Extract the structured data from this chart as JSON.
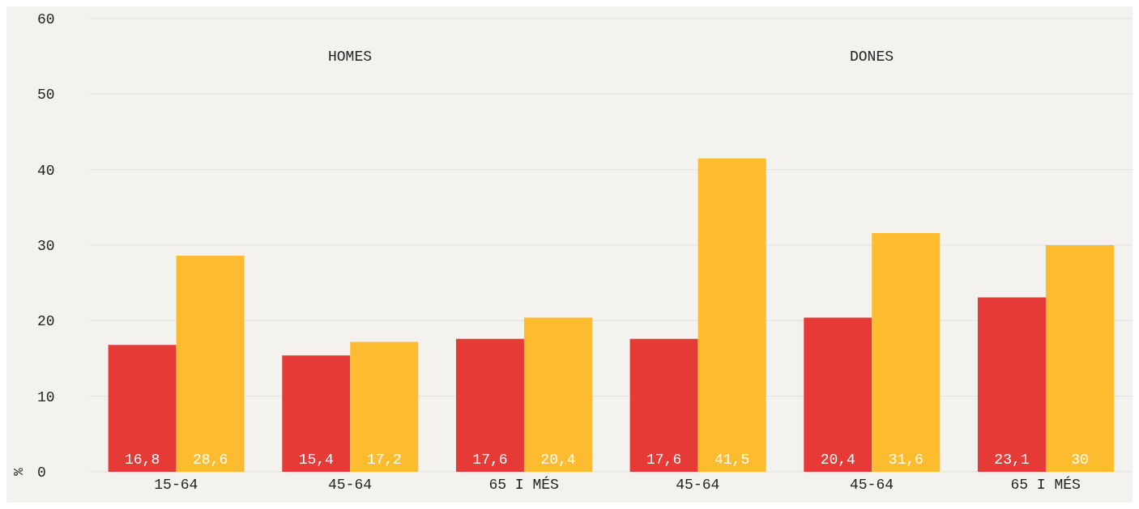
{
  "chart_data": {
    "type": "bar",
    "ylabel": "%",
    "categories": [
      "15-64",
      "45-64",
      "65 I MÉS",
      "45-64",
      "45-64",
      "65 I MÉS"
    ],
    "series": [
      {
        "color": "#e63a37",
        "values": [
          16.8,
          15.4,
          17.6,
          17.6,
          20.4,
          23.1
        ],
        "value_labels": [
          "16,8",
          "15,4",
          "17,6",
          "17,6",
          "20,4",
          "23,1"
        ]
      },
      {
        "color": "#fdbb30",
        "values": [
          28.6,
          17.2,
          20.4,
          41.5,
          31.6,
          30
        ],
        "value_labels": [
          "28,6",
          "17,2",
          "20,4",
          "41,5",
          "31,6",
          "30"
        ]
      }
    ],
    "annotations": [
      "HOMES",
      "DONES"
    ],
    "ylim": [
      0,
      60
    ],
    "yticks": [
      0,
      10,
      20,
      30,
      40,
      50,
      60
    ],
    "grid": "y",
    "legend": false
  }
}
